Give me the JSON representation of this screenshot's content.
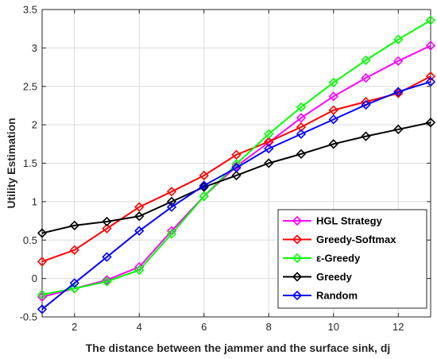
{
  "chart_data": {
    "type": "line",
    "title": "",
    "xlabel": "The distance between the jammer and the surface sink, dj",
    "ylabel": "Utility Estimation",
    "xlim": [
      1,
      13
    ],
    "ylim": [
      -0.5,
      3.5
    ],
    "xticks": [
      2,
      4,
      6,
      8,
      10,
      12
    ],
    "yticks": [
      -0.5,
      0,
      0.5,
      1,
      1.5,
      2,
      2.5,
      3,
      3.5
    ],
    "grid": true,
    "legend_position": "bottom-right",
    "x": [
      1,
      2,
      3,
      4,
      5,
      6,
      7,
      8,
      9,
      10,
      11,
      12,
      13
    ],
    "series": [
      {
        "name": "HGL Strategy",
        "color": "#ff00ff",
        "values": [
          -0.24,
          -0.13,
          -0.02,
          0.15,
          0.62,
          1.07,
          1.46,
          1.77,
          2.09,
          2.37,
          2.61,
          2.83,
          3.03
        ]
      },
      {
        "name": "Greedy-Softmax",
        "color": "#ff0000",
        "values": [
          0.22,
          0.37,
          0.65,
          0.93,
          1.13,
          1.34,
          1.61,
          1.78,
          1.97,
          2.19,
          2.3,
          2.41,
          2.63
        ]
      },
      {
        "name": "ε-Greedy",
        "color": "#00ff00",
        "values": [
          -0.21,
          -0.13,
          -0.04,
          0.11,
          0.58,
          1.07,
          1.49,
          1.88,
          2.23,
          2.55,
          2.84,
          3.11,
          3.36
        ]
      },
      {
        "name": "Greedy",
        "color": "#000000",
        "values": [
          0.59,
          0.69,
          0.74,
          0.81,
          1.0,
          1.19,
          1.34,
          1.5,
          1.62,
          1.75,
          1.85,
          1.94,
          2.03
        ]
      },
      {
        "name": "Random",
        "color": "#0000ff",
        "values": [
          -0.4,
          -0.06,
          0.28,
          0.62,
          0.93,
          1.21,
          1.44,
          1.69,
          1.88,
          2.07,
          2.26,
          2.43,
          2.56
        ]
      }
    ]
  }
}
